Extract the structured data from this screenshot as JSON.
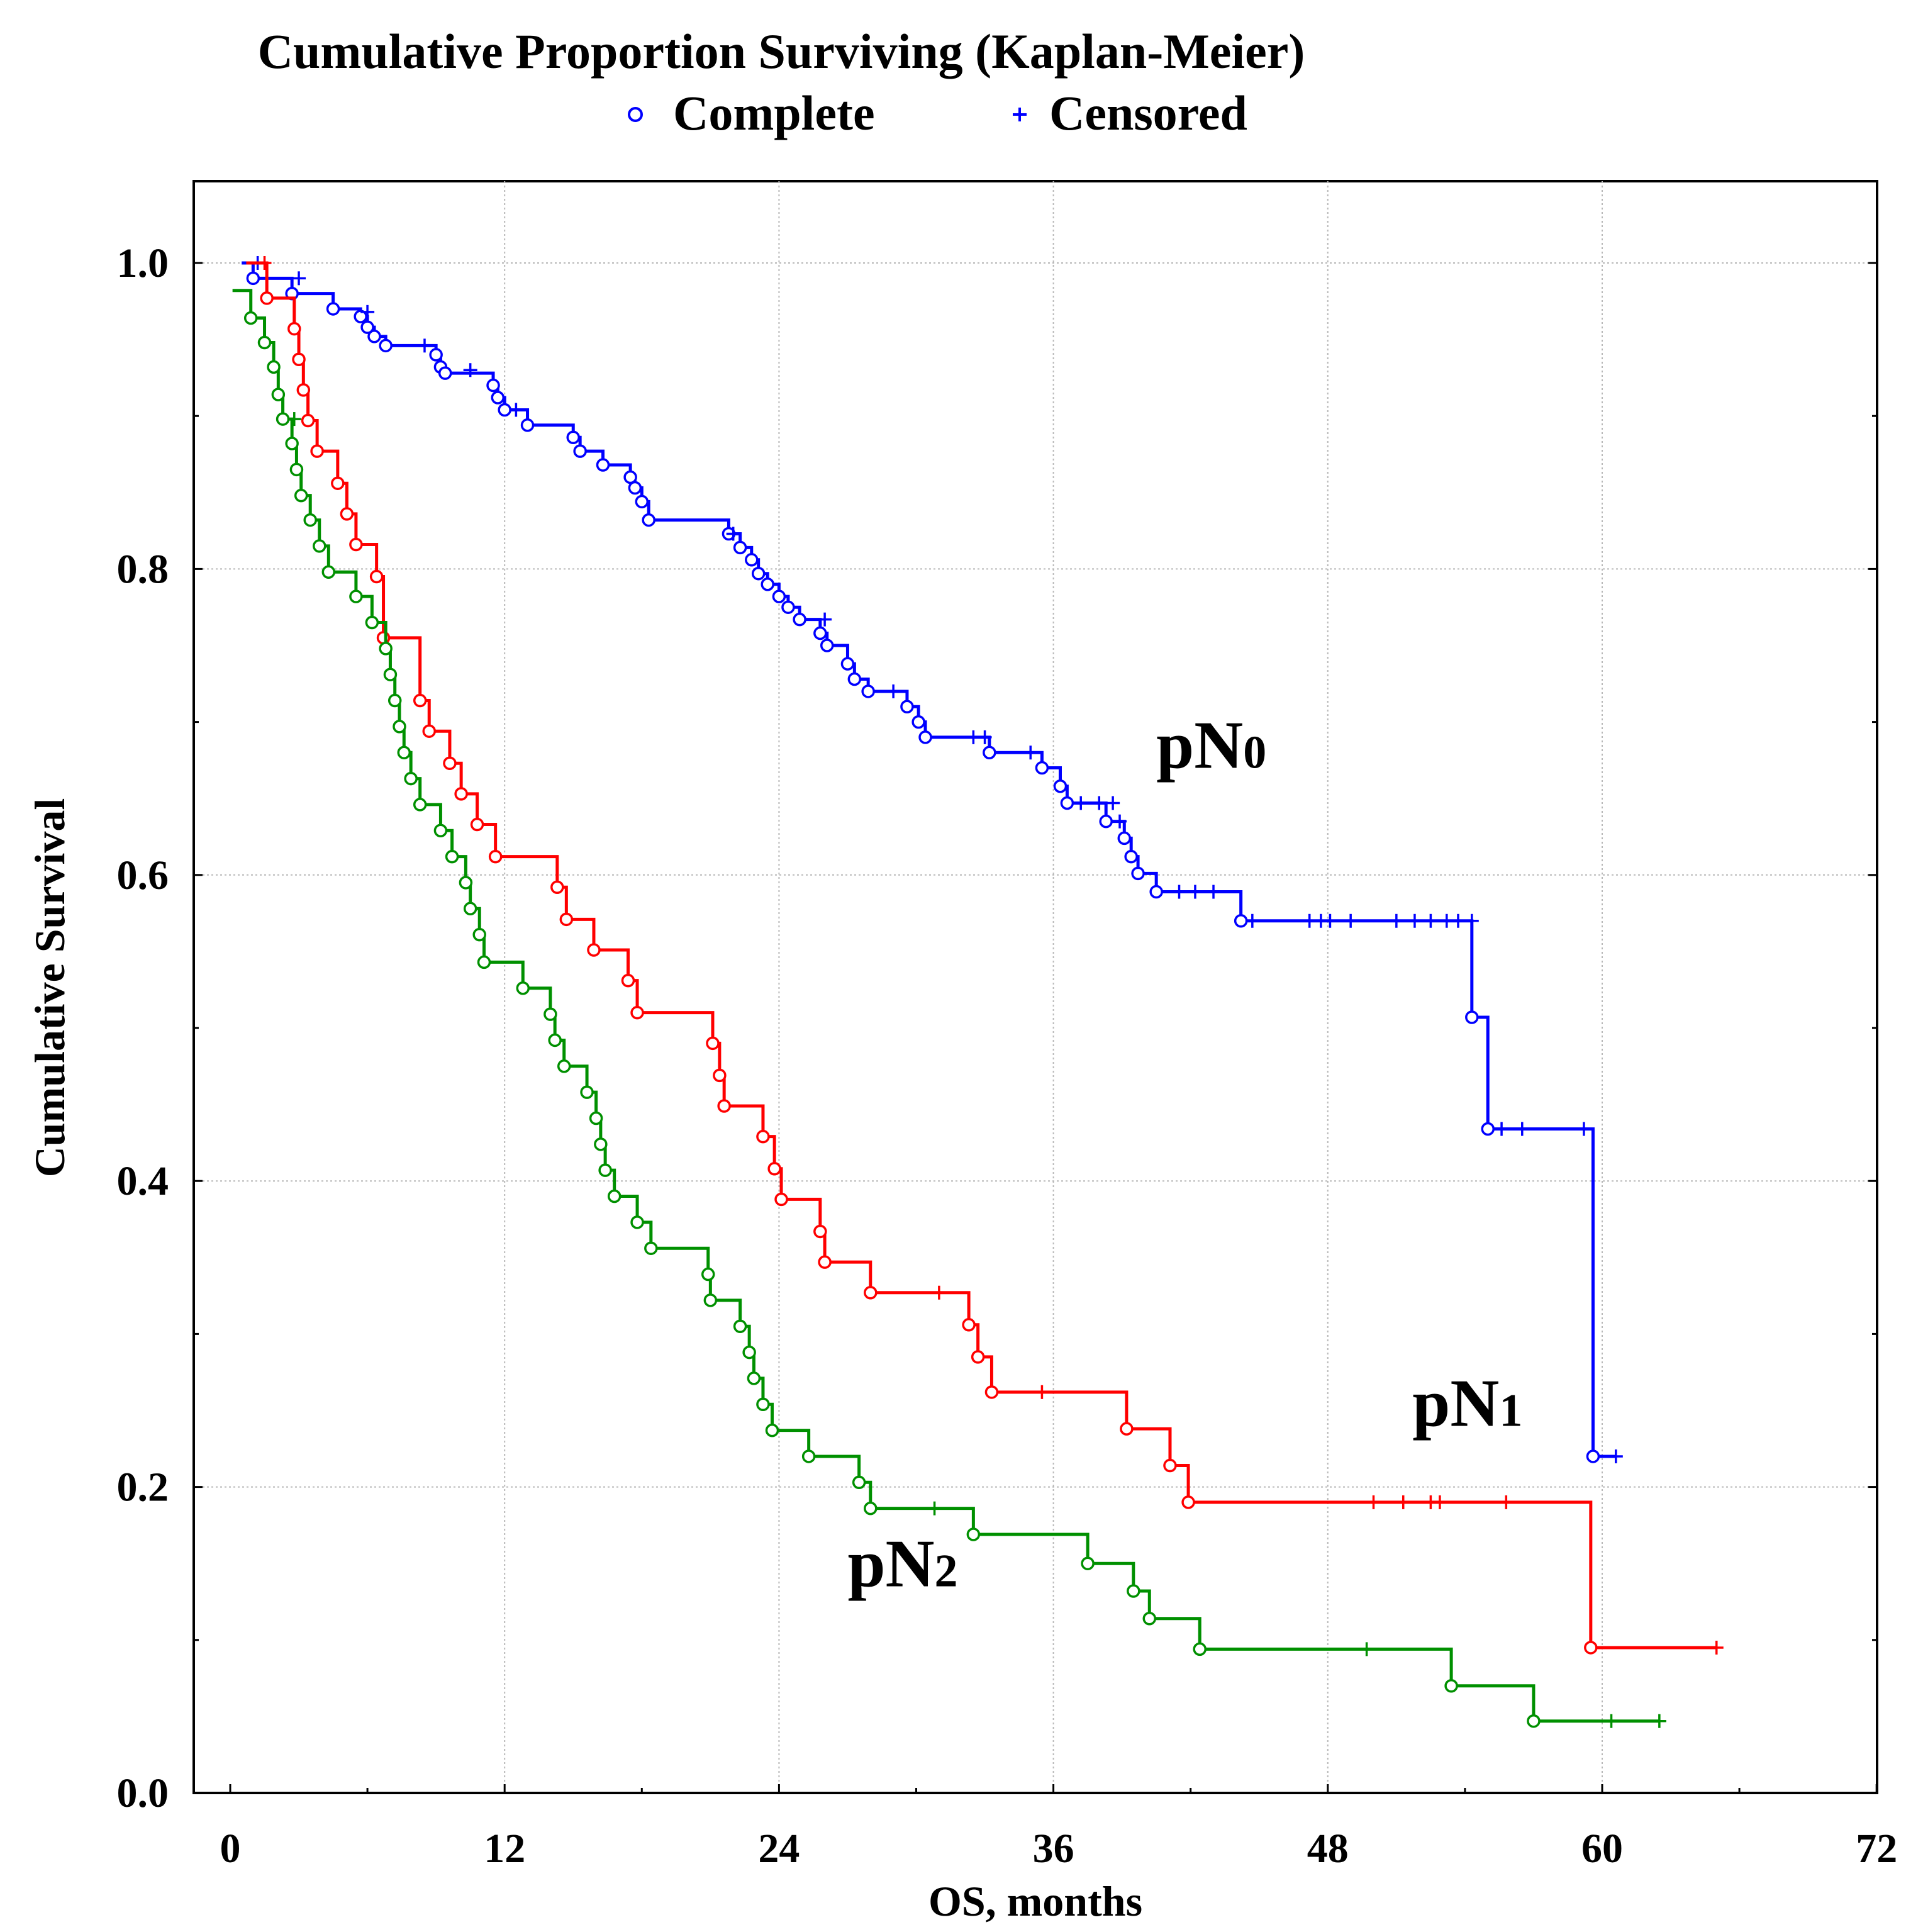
{
  "chart_data": {
    "type": "line",
    "subtype": "kaplan-meier",
    "title": "Cumulative Proportion Surviving (Kaplan-Meier)",
    "legend": [
      {
        "symbol": "○",
        "label": "Complete"
      },
      {
        "symbol": "+",
        "label": "Censored"
      }
    ],
    "legend_position": "top-center",
    "xlabel": "OS, months",
    "ylabel": "Cumulative Survival",
    "xlim": [
      -1,
      72
    ],
    "ylim": [
      0,
      1.05
    ],
    "xticks": [
      0,
      12,
      24,
      36,
      48,
      60,
      72
    ],
    "xtick_labels": [
      "0",
      "12",
      "24",
      "36",
      "48",
      "60",
      "72"
    ],
    "yticks": [
      0,
      0.2,
      0.4,
      0.6,
      0.8,
      1.0
    ],
    "ytick_labels": [
      "0.0",
      "0.2",
      "0.4",
      "0.6",
      "0.8",
      "1.0"
    ],
    "grid": true,
    "series": [
      {
        "name": "pN0",
        "label_main": "pN",
        "label_sub": "0",
        "label_at": [
          40.5,
          0.67
        ],
        "color": "#0000ff",
        "start": [
          0.5,
          1.0
        ],
        "steps": [
          [
            1,
            0.99
          ],
          [
            2.7,
            0.98
          ],
          [
            4.5,
            0.97
          ],
          [
            5.7,
            0.965
          ],
          [
            6,
            0.958
          ],
          [
            6.3,
            0.952
          ],
          [
            6.8,
            0.946
          ],
          [
            9,
            0.94
          ],
          [
            9.2,
            0.932
          ],
          [
            9.4,
            0.928
          ],
          [
            11.5,
            0.92
          ],
          [
            11.7,
            0.912
          ],
          [
            12,
            0.904
          ],
          [
            13,
            0.894
          ],
          [
            15,
            0.886
          ],
          [
            15.3,
            0.877
          ],
          [
            16.3,
            0.868
          ],
          [
            17.5,
            0.86
          ],
          [
            17.7,
            0.853
          ],
          [
            18,
            0.844
          ],
          [
            18.3,
            0.832
          ],
          [
            21.8,
            0.823
          ],
          [
            22.3,
            0.814
          ],
          [
            22.8,
            0.806
          ],
          [
            23.1,
            0.797
          ],
          [
            23.5,
            0.79
          ],
          [
            24,
            0.782
          ],
          [
            24.4,
            0.775
          ],
          [
            24.9,
            0.767
          ],
          [
            25.8,
            0.758
          ],
          [
            26.1,
            0.75
          ],
          [
            27,
            0.738
          ],
          [
            27.3,
            0.728
          ],
          [
            27.9,
            0.72
          ],
          [
            29.6,
            0.71
          ],
          [
            30.1,
            0.7
          ],
          [
            30.4,
            0.69
          ],
          [
            33.2,
            0.68
          ],
          [
            35.5,
            0.67
          ],
          [
            36.3,
            0.658
          ],
          [
            36.6,
            0.647
          ],
          [
            38.3,
            0.635
          ],
          [
            39.1,
            0.624
          ],
          [
            39.4,
            0.612
          ],
          [
            39.7,
            0.601
          ],
          [
            40.5,
            0.589
          ],
          [
            44.2,
            0.57
          ],
          [
            54.3,
            0.507
          ],
          [
            55,
            0.434
          ],
          [
            59.6,
            0.22
          ]
        ],
        "censored": [
          [
            1.2,
            1.0
          ],
          [
            3,
            0.99
          ],
          [
            6,
            0.968
          ],
          [
            8.5,
            0.946
          ],
          [
            10.5,
            0.93
          ],
          [
            12.5,
            0.904
          ],
          [
            22,
            0.823
          ],
          [
            26,
            0.767
          ],
          [
            29,
            0.72
          ],
          [
            32.5,
            0.69
          ],
          [
            33,
            0.69
          ],
          [
            35,
            0.68
          ],
          [
            37.2,
            0.647
          ],
          [
            38,
            0.647
          ],
          [
            38.6,
            0.647
          ],
          [
            38.9,
            0.635
          ],
          [
            41.5,
            0.589
          ],
          [
            42.2,
            0.589
          ],
          [
            43,
            0.589
          ],
          [
            44.7,
            0.57
          ],
          [
            47.2,
            0.57
          ],
          [
            47.7,
            0.57
          ],
          [
            48.1,
            0.57
          ],
          [
            49,
            0.57
          ],
          [
            51,
            0.57
          ],
          [
            51.8,
            0.57
          ],
          [
            52.5,
            0.57
          ],
          [
            53.2,
            0.57
          ],
          [
            53.7,
            0.57
          ],
          [
            54.3,
            0.57
          ],
          [
            55.6,
            0.434
          ],
          [
            56.5,
            0.434
          ],
          [
            59.2,
            0.434
          ],
          [
            60.6,
            0.22
          ]
        ],
        "end": [
          60.6,
          0.22
        ]
      },
      {
        "name": "pN1",
        "label_main": "pN",
        "label_sub": "1",
        "label_at": [
          51.7,
          0.24
        ],
        "color": "#ff0000",
        "start": [
          0.7,
          1.0
        ],
        "steps": [
          [
            1.6,
            0.977
          ],
          [
            2.8,
            0.957
          ],
          [
            3.0,
            0.937
          ],
          [
            3.2,
            0.917
          ],
          [
            3.4,
            0.897
          ],
          [
            3.8,
            0.877
          ],
          [
            4.7,
            0.856
          ],
          [
            5.1,
            0.836
          ],
          [
            5.5,
            0.816
          ],
          [
            6.4,
            0.795
          ],
          [
            6.7,
            0.755
          ],
          [
            8.3,
            0.714
          ],
          [
            8.7,
            0.694
          ],
          [
            9.6,
            0.673
          ],
          [
            10.1,
            0.653
          ],
          [
            10.8,
            0.633
          ],
          [
            11.6,
            0.612
          ],
          [
            14.3,
            0.592
          ],
          [
            14.7,
            0.571
          ],
          [
            15.9,
            0.551
          ],
          [
            17.4,
            0.531
          ],
          [
            17.8,
            0.51
          ],
          [
            21.1,
            0.49
          ],
          [
            21.4,
            0.469
          ],
          [
            21.6,
            0.449
          ],
          [
            23.3,
            0.429
          ],
          [
            23.8,
            0.408
          ],
          [
            24.1,
            0.388
          ],
          [
            25.8,
            0.367
          ],
          [
            26,
            0.347
          ],
          [
            28,
            0.327
          ],
          [
            32.3,
            0.306
          ],
          [
            32.7,
            0.285
          ],
          [
            33.3,
            0.262
          ],
          [
            39.2,
            0.238
          ],
          [
            41.1,
            0.214
          ],
          [
            41.9,
            0.19
          ],
          [
            59.5,
            0.095
          ]
        ],
        "censored": [
          [
            1.5,
            1.0
          ],
          [
            31,
            0.327
          ],
          [
            35.5,
            0.262
          ],
          [
            50,
            0.19
          ],
          [
            51.3,
            0.19
          ],
          [
            52.5,
            0.19
          ],
          [
            52.9,
            0.19
          ],
          [
            55.8,
            0.19
          ],
          [
            65,
            0.095
          ]
        ],
        "end": [
          65,
          0.095
        ]
      },
      {
        "name": "pN2",
        "label_main": "pN",
        "label_sub": "2",
        "label_at": [
          27,
          0.135
        ],
        "color": "#009000",
        "start": [
          0.1,
          0.982
        ],
        "steps": [
          [
            0.9,
            0.964
          ],
          [
            1.5,
            0.948
          ],
          [
            1.9,
            0.932
          ],
          [
            2.1,
            0.914
          ],
          [
            2.3,
            0.898
          ],
          [
            2.7,
            0.882
          ],
          [
            2.9,
            0.865
          ],
          [
            3.1,
            0.848
          ],
          [
            3.5,
            0.832
          ],
          [
            3.9,
            0.815
          ],
          [
            4.3,
            0.798
          ],
          [
            5.5,
            0.782
          ],
          [
            6.2,
            0.765
          ],
          [
            6.8,
            0.748
          ],
          [
            7.0,
            0.731
          ],
          [
            7.2,
            0.714
          ],
          [
            7.4,
            0.697
          ],
          [
            7.6,
            0.68
          ],
          [
            7.9,
            0.663
          ],
          [
            8.3,
            0.646
          ],
          [
            9.2,
            0.629
          ],
          [
            9.7,
            0.612
          ],
          [
            10.3,
            0.595
          ],
          [
            10.5,
            0.578
          ],
          [
            10.9,
            0.561
          ],
          [
            11.1,
            0.543
          ],
          [
            12.8,
            0.526
          ],
          [
            14,
            0.509
          ],
          [
            14.2,
            0.492
          ],
          [
            14.6,
            0.475
          ],
          [
            15.6,
            0.458
          ],
          [
            16,
            0.441
          ],
          [
            16.2,
            0.424
          ],
          [
            16.4,
            0.407
          ],
          [
            16.8,
            0.39
          ],
          [
            17.8,
            0.373
          ],
          [
            18.4,
            0.356
          ],
          [
            20.9,
            0.339
          ],
          [
            21.0,
            0.322
          ],
          [
            22.3,
            0.305
          ],
          [
            22.7,
            0.288
          ],
          [
            22.9,
            0.271
          ],
          [
            23.3,
            0.254
          ],
          [
            23.7,
            0.237
          ],
          [
            25.3,
            0.22
          ],
          [
            27.5,
            0.203
          ],
          [
            28,
            0.186
          ],
          [
            32.5,
            0.169
          ],
          [
            37.5,
            0.15
          ],
          [
            39.5,
            0.132
          ],
          [
            40.2,
            0.114
          ],
          [
            42.4,
            0.094
          ],
          [
            53.4,
            0.07
          ],
          [
            57,
            0.047
          ]
        ],
        "censored": [
          [
            2.8,
            0.898
          ],
          [
            30.8,
            0.186
          ],
          [
            49.7,
            0.094
          ],
          [
            60.4,
            0.047
          ],
          [
            62.5,
            0.047
          ]
        ],
        "end": [
          62.5,
          0.047
        ]
      }
    ]
  }
}
